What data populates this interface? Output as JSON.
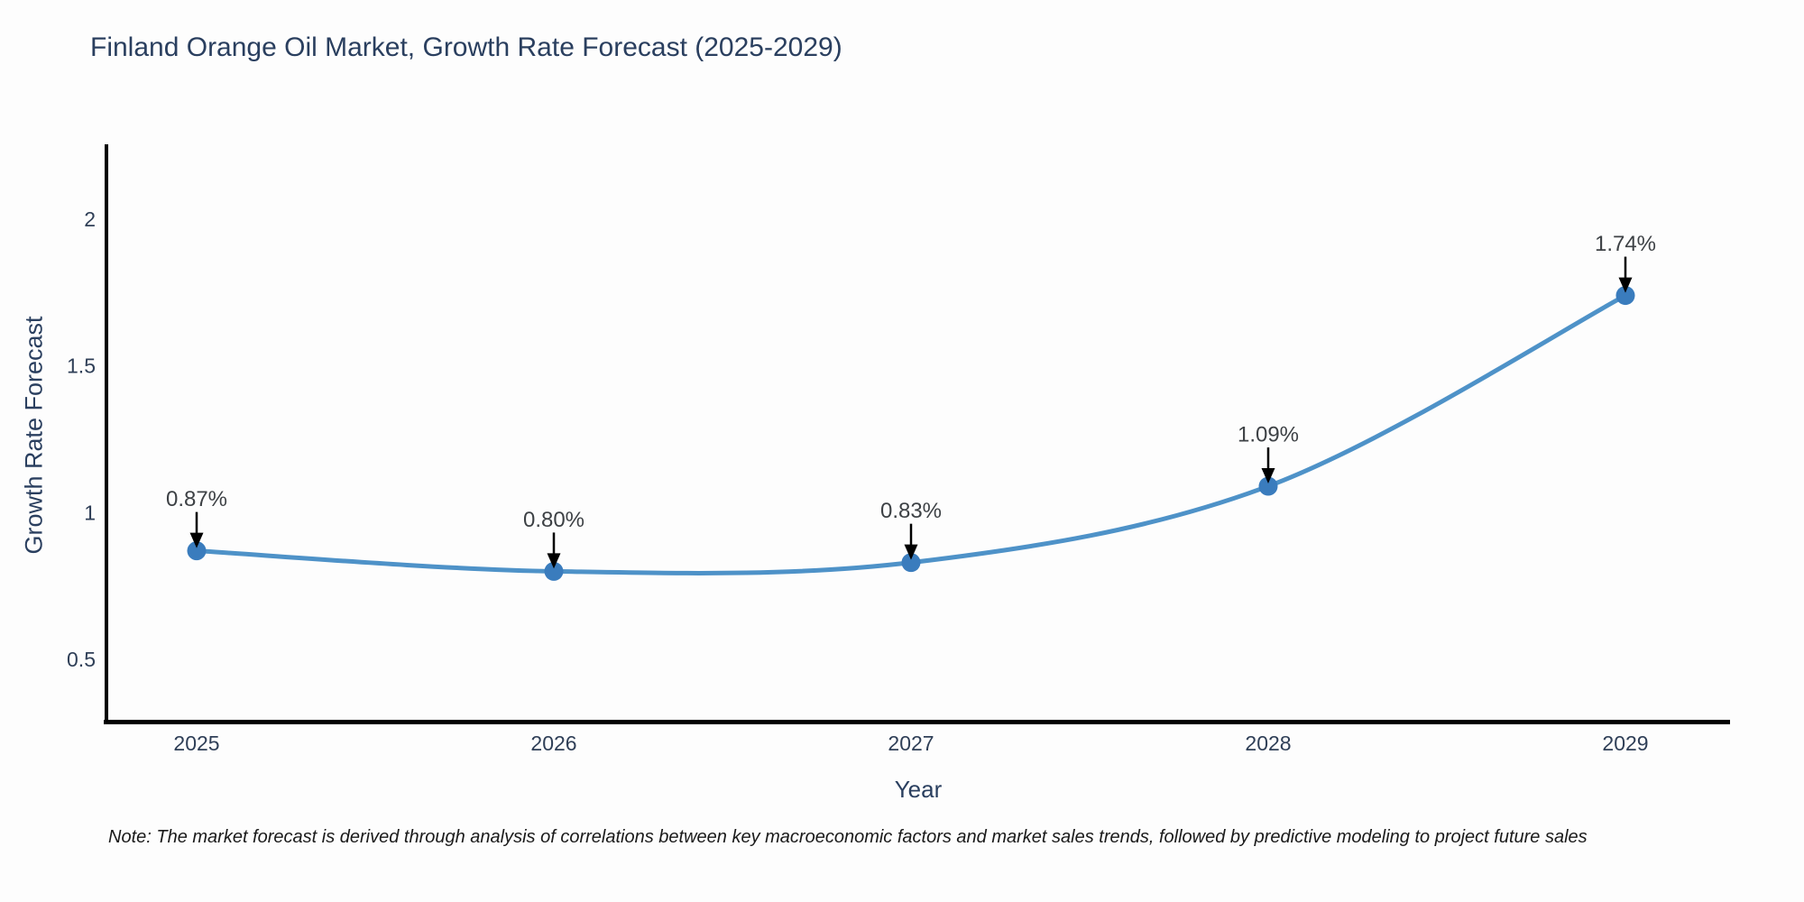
{
  "title": "Finland Orange Oil Market, Growth Rate Forecast (2025-2029)",
  "note": "Note: The market forecast is derived through analysis of correlations between key macroeconomic factors and market sales trends, followed by predictive modeling to project future sales",
  "chart_data": {
    "type": "line",
    "title": "Finland Orange Oil Market, Growth Rate Forecast (2025-2029)",
    "xlabel": "Year",
    "ylabel": "Growth Rate Forecast",
    "categories": [
      "2025",
      "2026",
      "2027",
      "2028",
      "2029"
    ],
    "x": [
      2025,
      2026,
      2027,
      2028,
      2029
    ],
    "values": [
      0.87,
      0.8,
      0.83,
      1.09,
      1.74
    ],
    "point_labels": [
      "0.87%",
      "0.80%",
      "0.83%",
      "1.09%",
      "1.74%"
    ],
    "yticks": [
      0.5,
      1,
      1.5,
      2
    ],
    "ytick_labels": [
      "0.5",
      "1",
      "1.5",
      "2"
    ],
    "ylim": [
      0.288,
      2.255
    ],
    "grid": false,
    "legend": "none",
    "line_shape": "spline",
    "colors": {
      "line": "#4e92c8",
      "marker": "#3a7cbd",
      "axis": "#000000",
      "title_text": "#2a3f5f",
      "tick_text": "#2f3f57",
      "annotation_text": "#3d4145",
      "arrow": "#000000",
      "background": "#fdfdfd"
    }
  }
}
